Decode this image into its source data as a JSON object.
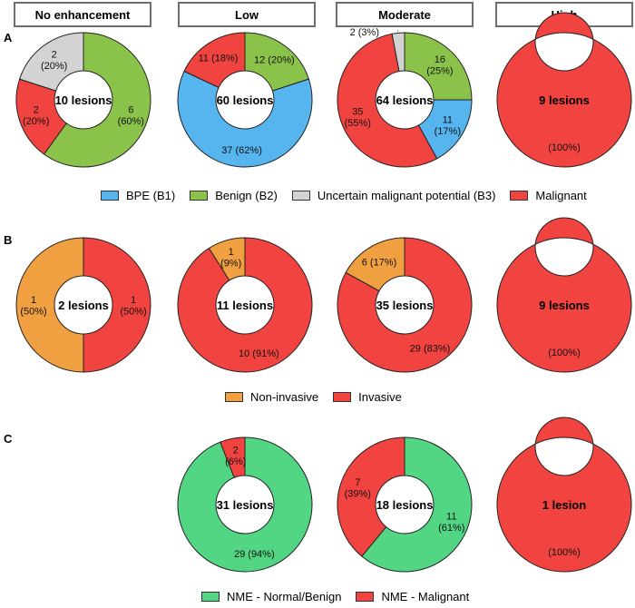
{
  "headers": [
    "No enhancement",
    "Low",
    "Moderate",
    "High"
  ],
  "colors": {
    "bpe": "#56b4ef",
    "benign": "#8bc34a",
    "uncertain": "#d3d3d3",
    "malignant": "#f1433f",
    "non_invasive": "#f0a040",
    "nme_benign": "#52d683",
    "header_border": "#6e6e6e"
  },
  "legends": {
    "A": [
      {
        "label": "BPE (B1)",
        "color": "#56b4ef"
      },
      {
        "label": "Benign (B2)",
        "color": "#8bc34a"
      },
      {
        "label": "Uncertain malignant potential (B3)",
        "color": "#d3d3d3"
      },
      {
        "label": "Malignant",
        "color": "#f1433f"
      }
    ],
    "B": [
      {
        "label": "Non-invasive",
        "color": "#f0a040"
      },
      {
        "label": "Invasive",
        "color": "#f1433f"
      }
    ],
    "C": [
      {
        "label": "NME - Normal/Benign",
        "color": "#52d683"
      },
      {
        "label": "NME - Malignant",
        "color": "#f1433f"
      }
    ]
  },
  "chart_data": [
    {
      "type": "pie",
      "panel": "A",
      "column": "No enhancement",
      "center_label": "10 lesions",
      "slices": [
        {
          "category": "Benign (B2)",
          "count": 6,
          "percent": 60,
          "label": "6\n(60%)"
        },
        {
          "category": "Malignant",
          "count": 2,
          "percent": 20,
          "label": "2\n(20%)"
        },
        {
          "category": "Uncertain malignant potential (B3)",
          "count": 2,
          "percent": 20,
          "label": "2\n(20%)"
        }
      ]
    },
    {
      "type": "pie",
      "panel": "A",
      "column": "Low",
      "center_label": "60 lesions",
      "slices": [
        {
          "category": "Benign (B2)",
          "count": 12,
          "percent": 20,
          "label": "12 (20%)"
        },
        {
          "category": "BPE (B1)",
          "count": 37,
          "percent": 62,
          "label": "37 (62%)"
        },
        {
          "category": "Malignant",
          "count": 11,
          "percent": 18,
          "label": "11 (18%)"
        }
      ]
    },
    {
      "type": "pie",
      "panel": "A",
      "column": "Moderate",
      "center_label": "64 lesions",
      "slices": [
        {
          "category": "Benign (B2)",
          "count": 16,
          "percent": 25,
          "label": "16\n(25%)"
        },
        {
          "category": "BPE (B1)",
          "count": 11,
          "percent": 17,
          "label": "11\n(17%)"
        },
        {
          "category": "Malignant",
          "count": 35,
          "percent": 55,
          "label": "35\n(55%)"
        },
        {
          "category": "Uncertain malignant potential (B3)",
          "count": 2,
          "percent": 3,
          "label": "2 (3%)"
        }
      ]
    },
    {
      "type": "pie",
      "panel": "A",
      "column": "High",
      "center_label": "9 lesions",
      "slices": [
        {
          "category": "Malignant",
          "count": 9,
          "percent": 100,
          "label": "(100%)"
        }
      ]
    },
    {
      "type": "pie",
      "panel": "B",
      "column": "No enhancement",
      "center_label": "2 lesions",
      "slices": [
        {
          "category": "Invasive",
          "count": 1,
          "percent": 50,
          "label": "1\n(50%)"
        },
        {
          "category": "Non-invasive",
          "count": 1,
          "percent": 50,
          "label": "1\n(50%)"
        }
      ]
    },
    {
      "type": "pie",
      "panel": "B",
      "column": "Low",
      "center_label": "11 lesions",
      "slices": [
        {
          "category": "Invasive",
          "count": 10,
          "percent": 91,
          "label": "10 (91%)"
        },
        {
          "category": "Non-invasive",
          "count": 1,
          "percent": 9,
          "label": "1\n(9%)"
        }
      ]
    },
    {
      "type": "pie",
      "panel": "B",
      "column": "Moderate",
      "center_label": "35 lesions",
      "slices": [
        {
          "category": "Invasive",
          "count": 29,
          "percent": 83,
          "label": "29 (83%)"
        },
        {
          "category": "Non-invasive",
          "count": 6,
          "percent": 17,
          "label": "6 (17%)"
        }
      ]
    },
    {
      "type": "pie",
      "panel": "B",
      "column": "High",
      "center_label": "9 lesions",
      "slices": [
        {
          "category": "Invasive",
          "count": 9,
          "percent": 100,
          "label": "(100%)"
        }
      ]
    },
    {
      "type": "pie",
      "panel": "C",
      "column": "Low",
      "center_label": "31 lesions",
      "slices": [
        {
          "category": "NME - Normal/Benign",
          "count": 29,
          "percent": 94,
          "label": "29 (94%)"
        },
        {
          "category": "NME - Malignant",
          "count": 2,
          "percent": 6,
          "label": "2\n(6%)"
        }
      ]
    },
    {
      "type": "pie",
      "panel": "C",
      "column": "Moderate",
      "center_label": "18 lesions",
      "slices": [
        {
          "category": "NME - Normal/Benign",
          "count": 11,
          "percent": 61,
          "label": "11\n(61%)"
        },
        {
          "category": "NME - Malignant",
          "count": 7,
          "percent": 39,
          "label": "7\n(39%)"
        }
      ]
    },
    {
      "type": "pie",
      "panel": "C",
      "column": "High",
      "center_label": "1 lesion",
      "slices": [
        {
          "category": "NME - Malignant",
          "count": 1,
          "percent": 100,
          "label": "(100%)"
        }
      ]
    }
  ]
}
